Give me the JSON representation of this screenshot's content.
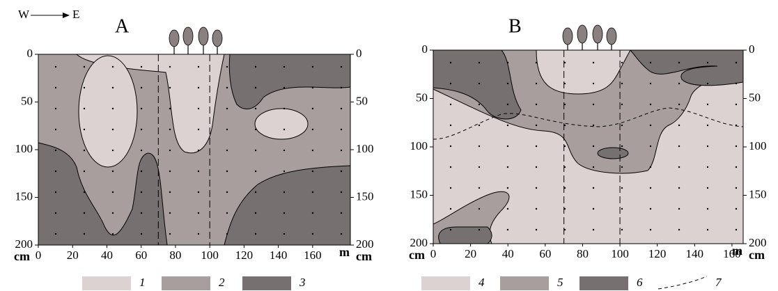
{
  "header": {
    "west": "W",
    "east": "E"
  },
  "panels": [
    {
      "label": "A",
      "depth_unit": "cm",
      "distance_unit": "m",
      "xlim": [
        0,
        182
      ],
      "ylim": [
        0,
        200
      ],
      "xticks": [
        0,
        20,
        40,
        60,
        80,
        100,
        120,
        140,
        160
      ],
      "yticks": [
        0,
        50,
        100,
        150,
        200
      ]
    },
    {
      "label": "B",
      "depth_unit": "cm",
      "distance_unit": "m",
      "xlim": [
        0,
        166
      ],
      "ylim": [
        0,
        200
      ],
      "xticks": [
        0,
        20,
        40,
        60,
        80,
        100,
        120,
        140,
        160
      ],
      "yticks": [
        0,
        50,
        100,
        150,
        200
      ]
    }
  ],
  "legend": [
    {
      "label": "1",
      "color": "#dcd2d2"
    },
    {
      "label": "2",
      "color": "#a99e9e"
    },
    {
      "label": "3",
      "color": "#767070"
    },
    {
      "label": "4",
      "color": "#dcd2d2"
    },
    {
      "label": "5",
      "color": "#a99e9e"
    },
    {
      "label": "6",
      "color": "#767070"
    },
    {
      "label": "7",
      "color": "#000000"
    }
  ]
}
